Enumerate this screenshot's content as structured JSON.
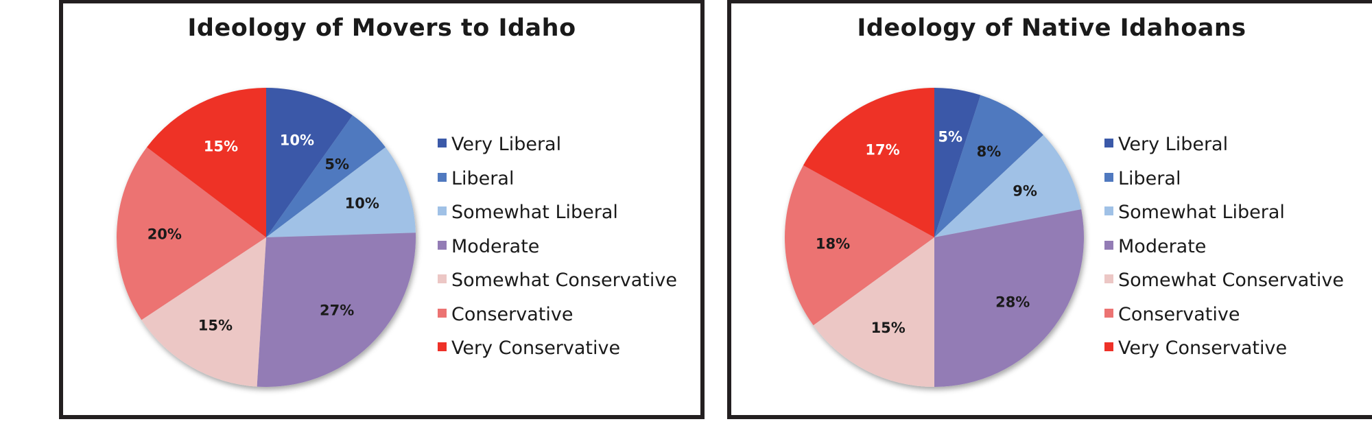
{
  "colors": {
    "Very Liberal": "#3b59a8",
    "Liberal": "#5079bf",
    "Somewhat Liberal": "#a0c1e6",
    "Moderate": "#937cb5",
    "Somewhat Conservative": "#ecc7c5",
    "Conservative": "#ec7372",
    "Very Conservative": "#ee3128"
  },
  "label_colors": {
    "Very Liberal": "#ffffff",
    "Liberal": "#1a1a1a",
    "Somewhat Liberal": "#1a1a1a",
    "Moderate": "#1a1a1a",
    "Somewhat Conservative": "#1a1a1a",
    "Conservative": "#1a1a1a",
    "Very Conservative": "#ffffff"
  },
  "chart_data": [
    {
      "type": "pie",
      "title": "Ideology of Movers to Idaho",
      "legend_position": "right",
      "categories": [
        "Very Liberal",
        "Liberal",
        "Somewhat Liberal",
        "Moderate",
        "Somewhat Conservative",
        "Conservative",
        "Very Conservative"
      ],
      "values": [
        10,
        5,
        10,
        27,
        15,
        20,
        15
      ],
      "labels": [
        "10%",
        "5%",
        "10%",
        "27%",
        "15%",
        "20%",
        "15%"
      ]
    },
    {
      "type": "pie",
      "title": "Ideology of Native Idahoans",
      "legend_position": "right",
      "categories": [
        "Very Liberal",
        "Liberal",
        "Somewhat Liberal",
        "Moderate",
        "Somewhat Conservative",
        "Conservative",
        "Very Conservative"
      ],
      "values": [
        5,
        8,
        9,
        28,
        15,
        18,
        17
      ],
      "labels": [
        "5%",
        "8%",
        "9%",
        "28%",
        "15%",
        "18%",
        "17%"
      ]
    }
  ]
}
